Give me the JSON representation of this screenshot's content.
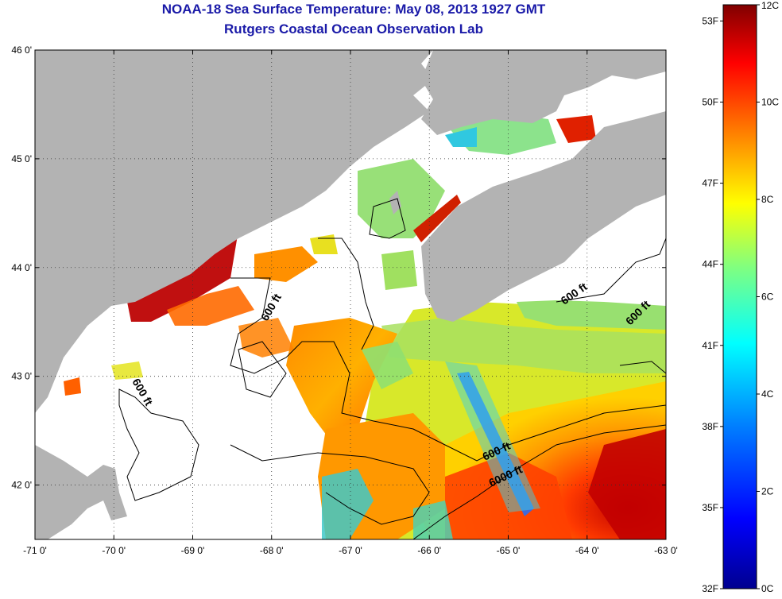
{
  "title": {
    "line1": "NOAA-18 Sea Surface Temperature:  May 08, 2013 1927 GMT",
    "line2": "Rutgers Coastal Ocean Observation Lab"
  },
  "map": {
    "lon_range": [
      -71,
      -63
    ],
    "lat_range": [
      41.5,
      46
    ],
    "x_ticks": [
      "-71 0'",
      "-70 0'",
      "-69 0'",
      "-68 0'",
      "-67 0'",
      "-66 0'",
      "-65 0'",
      "-64 0'",
      "-63 0'"
    ],
    "y_ticks": [
      "46 0'",
      "45 0'",
      "44 0'",
      "43 0'",
      "42 0'"
    ],
    "grid": "dotted",
    "contour_labels": [
      "600 ft",
      "600 ft",
      "600 ft",
      "600 ft",
      "600 ft",
      "6000 ft"
    ],
    "colors": {
      "land": "#b3b3b3",
      "no_data": "#ffffff",
      "contour": "#000000"
    }
  },
  "colorbar": {
    "celsius_labels": [
      "12C",
      "10C",
      "8C",
      "6C",
      "4C",
      "2C",
      "0C"
    ],
    "fahrenheit_labels": [
      "53F",
      "50F",
      "47F",
      "44F",
      "41F",
      "38F",
      "35F",
      "32F"
    ],
    "colormap": [
      "#00008f",
      "#0000ff",
      "#0080ff",
      "#00ffff",
      "#80ff80",
      "#ffff00",
      "#ff8000",
      "#ff0000",
      "#800000"
    ]
  }
}
